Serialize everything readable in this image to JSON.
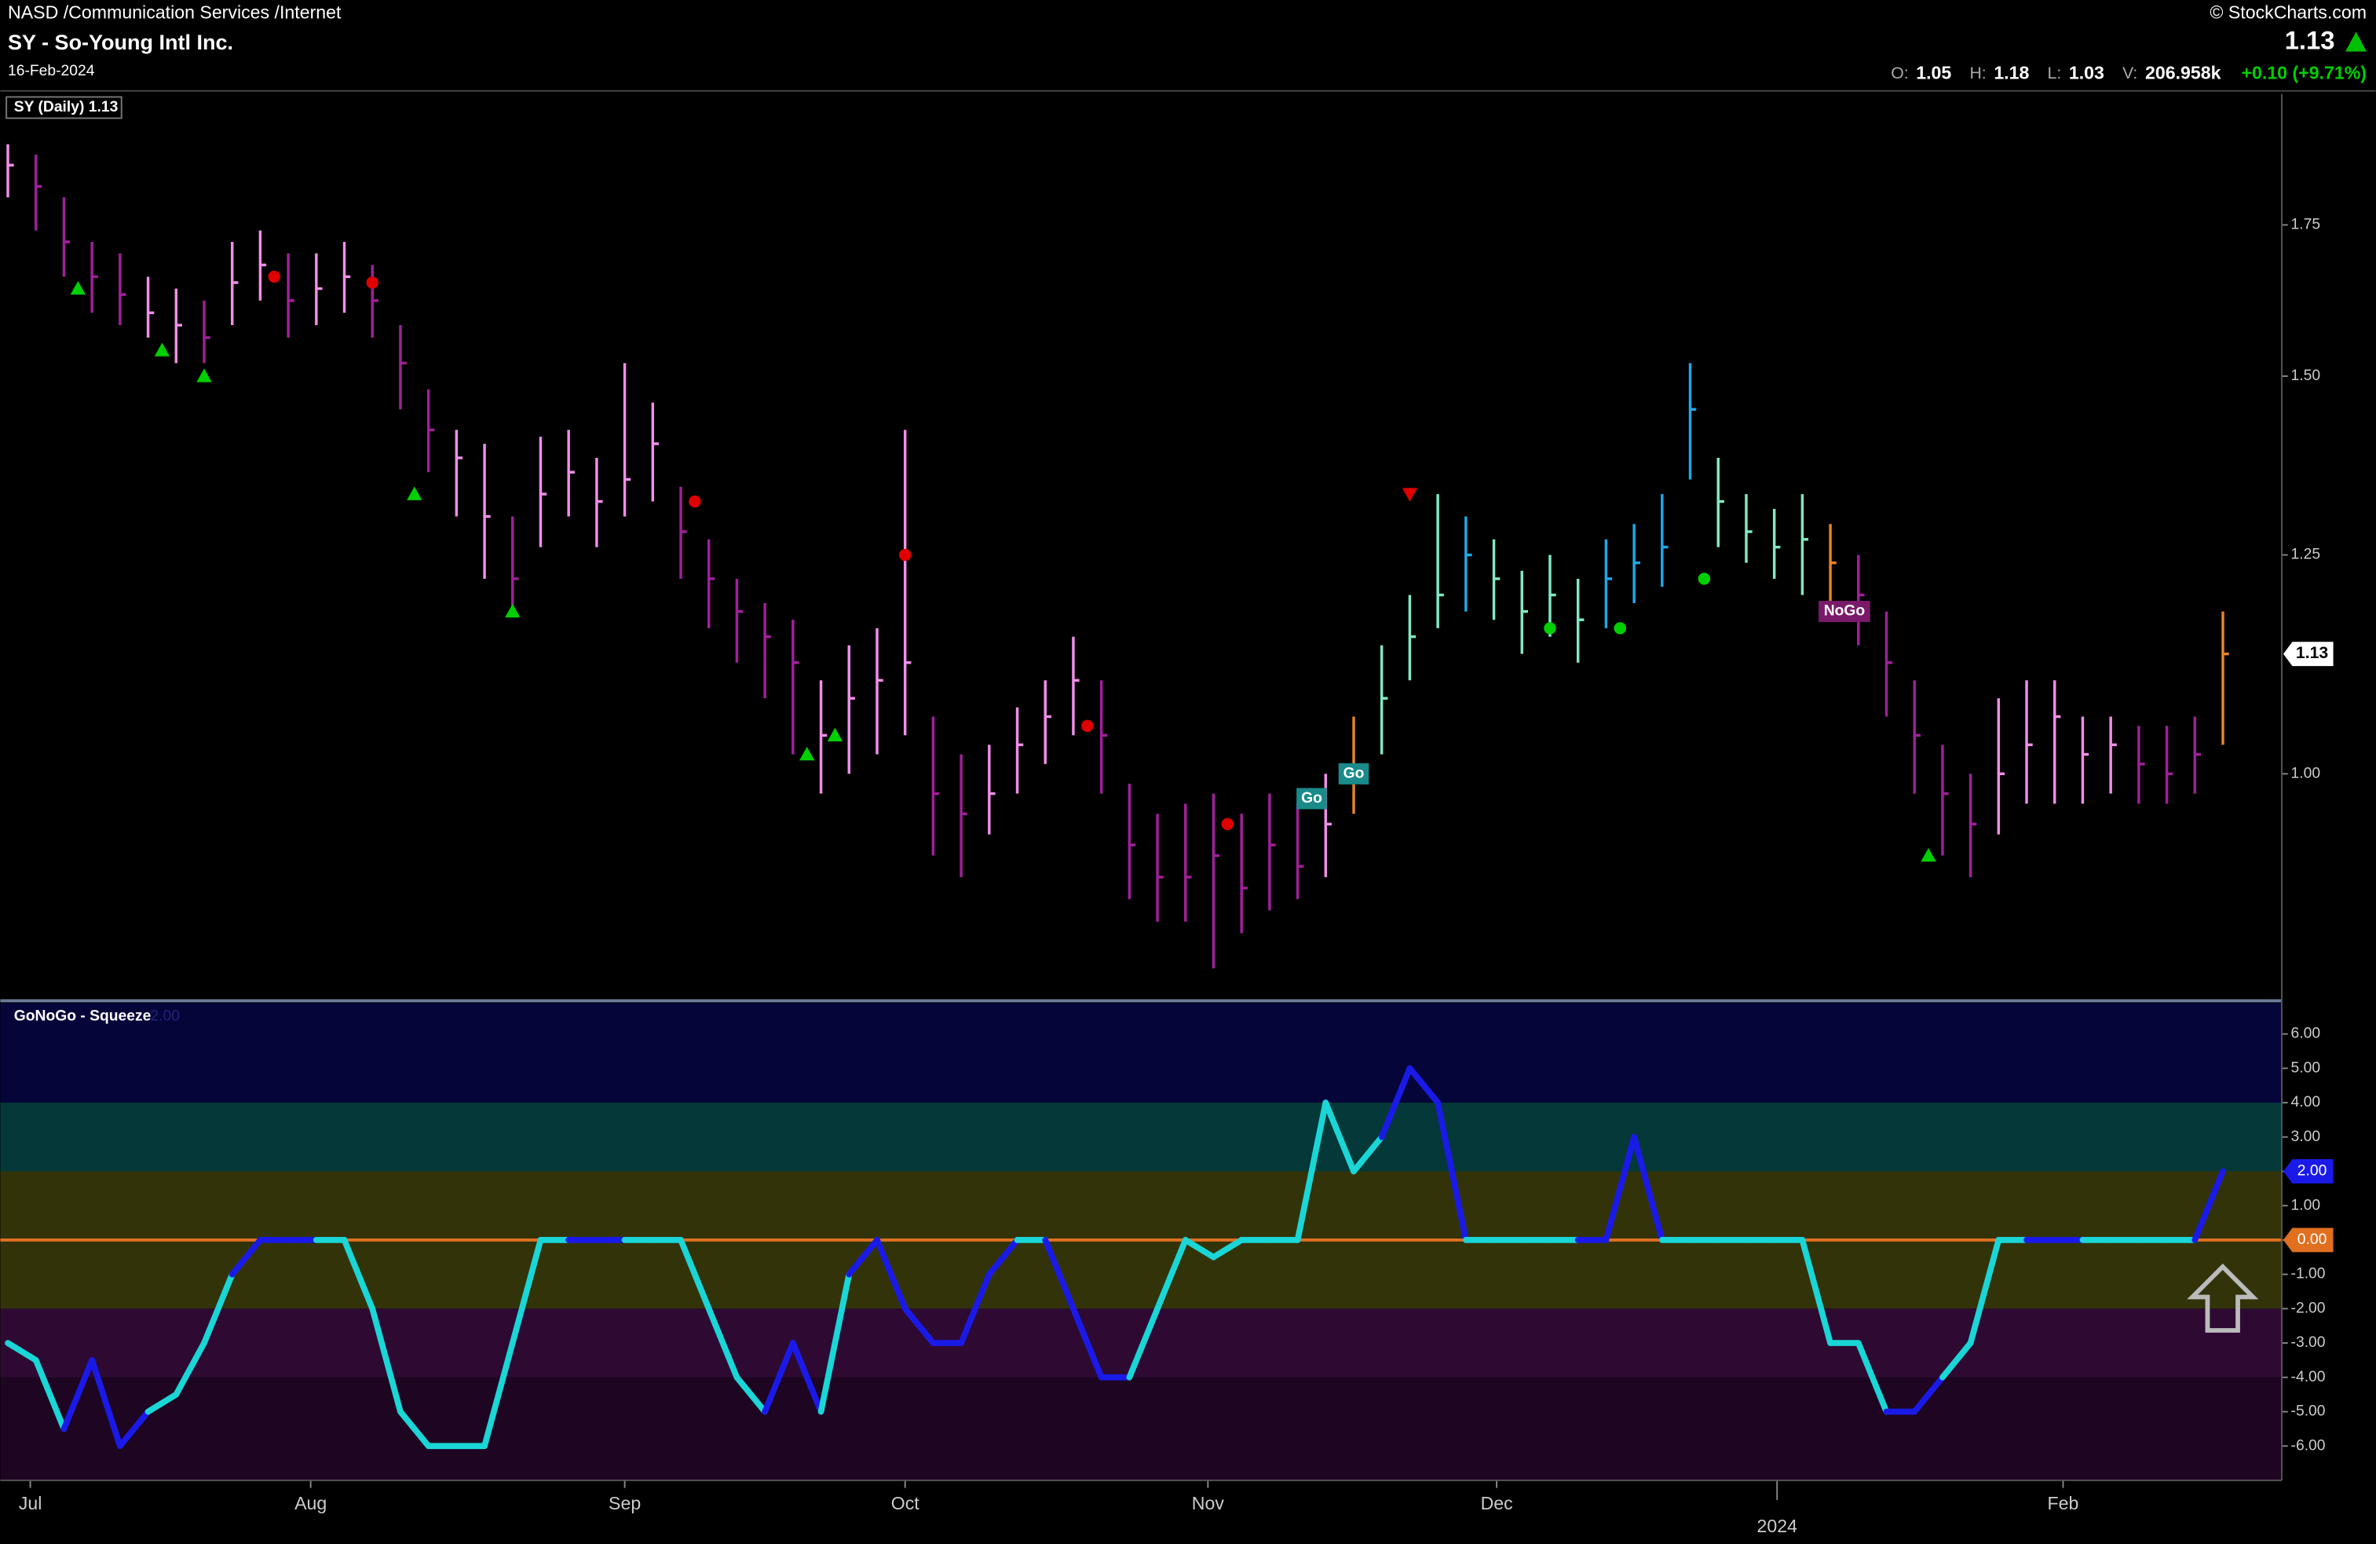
{
  "header": {
    "exchange": "NASD /Communication Services /Internet",
    "name": "SY - So-Young Intl Inc.",
    "date": "16-Feb-2024",
    "brand": "© StockCharts.com",
    "last": "1.13",
    "ohlc": [
      {
        "label": "O:",
        "value": "1.05"
      },
      {
        "label": "H:",
        "value": "1.18"
      },
      {
        "label": "L:",
        "value": "1.03"
      },
      {
        "label": "V:",
        "value": "206.958k"
      }
    ],
    "change": "+0.10 (+9.71%)"
  },
  "chart_data": [
    {
      "type": "ohlc",
      "legend": "SY (Daily) 1.13",
      "log_scale": true,
      "ylim": [
        0.794,
        2.0
      ],
      "yticks": [
        1.75,
        {
          "value": 1.5,
          "label": "1.50"
        },
        1.25,
        {
          "value": 1.0,
          "label": "1.00"
        }
      ],
      "xlim": [
        -0.27,
        81.1
      ],
      "xticks": [
        {
          "value": 0.8,
          "label": "Jul"
        },
        {
          "value": 10.8,
          "label": "Aug"
        },
        {
          "value": 22,
          "label": "Sep"
        },
        {
          "value": 32,
          "label": "Oct"
        },
        {
          "value": 42.8,
          "label": "Nov"
        },
        {
          "value": 53.1,
          "label": "Dec"
        },
        {
          "value": 73.3,
          "label": "Feb"
        }
      ],
      "x_year_ticks": [
        {
          "value": 63.1,
          "label": "2024"
        }
      ],
      "palette": [
        "#f08ee8",
        "#a0209a",
        "#80e8c8",
        "#20a8e8",
        "#e8822a"
      ],
      "high": [
        1.9,
        1.88,
        1.8,
        1.72,
        1.7,
        1.66,
        1.64,
        1.62,
        1.72,
        1.74,
        1.7,
        1.7,
        1.72,
        1.68,
        1.58,
        1.48,
        1.42,
        1.4,
        1.3,
        1.41,
        1.42,
        1.38,
        1.52,
        1.46,
        1.34,
        1.27,
        1.22,
        1.19,
        1.17,
        1.1,
        1.14,
        1.16,
        1.42,
        1.06,
        1.02,
        1.03,
        1.07,
        1.1,
        1.15,
        1.1,
        0.99,
        0.96,
        0.97,
        0.98,
        0.96,
        0.98,
        0.97,
        1.0,
        1.06,
        1.14,
        1.2,
        1.33,
        1.3,
        1.27,
        1.23,
        1.25,
        1.22,
        1.27,
        1.29,
        1.33,
        1.52,
        1.38,
        1.33,
        1.31,
        1.33,
        1.29,
        1.25,
        1.18,
        1.1,
        1.03,
        1.0,
        1.08,
        1.1,
        1.1,
        1.06,
        1.06,
        1.05,
        1.05,
        1.06,
        1.18
      ],
      "low": [
        1.8,
        1.74,
        1.66,
        1.6,
        1.58,
        1.56,
        1.52,
        1.52,
        1.58,
        1.62,
        1.56,
        1.58,
        1.6,
        1.56,
        1.45,
        1.36,
        1.3,
        1.22,
        1.18,
        1.26,
        1.3,
        1.26,
        1.3,
        1.32,
        1.22,
        1.16,
        1.12,
        1.08,
        1.02,
        0.98,
        1.0,
        1.02,
        1.04,
        0.92,
        0.9,
        0.94,
        0.98,
        1.01,
        1.04,
        0.98,
        0.88,
        0.86,
        0.86,
        0.82,
        0.85,
        0.87,
        0.88,
        0.9,
        0.96,
        1.02,
        1.1,
        1.16,
        1.18,
        1.17,
        1.13,
        1.15,
        1.12,
        1.16,
        1.19,
        1.21,
        1.35,
        1.26,
        1.24,
        1.22,
        1.2,
        1.18,
        1.14,
        1.06,
        0.98,
        0.92,
        0.9,
        0.94,
        0.97,
        0.97,
        0.97,
        0.98,
        0.97,
        0.97,
        0.98,
        1.03
      ],
      "close": [
        1.86,
        1.82,
        1.72,
        1.66,
        1.63,
        1.6,
        1.58,
        1.56,
        1.65,
        1.68,
        1.62,
        1.64,
        1.66,
        1.62,
        1.52,
        1.42,
        1.38,
        1.3,
        1.22,
        1.33,
        1.36,
        1.32,
        1.35,
        1.4,
        1.28,
        1.22,
        1.18,
        1.15,
        1.12,
        1.04,
        1.08,
        1.1,
        1.12,
        0.98,
        0.96,
        0.98,
        1.03,
        1.06,
        1.1,
        1.04,
        0.93,
        0.9,
        0.9,
        0.92,
        0.89,
        0.93,
        0.91,
        0.95,
        1.0,
        1.08,
        1.15,
        1.2,
        1.25,
        1.22,
        1.18,
        1.2,
        1.17,
        1.22,
        1.24,
        1.26,
        1.45,
        1.32,
        1.28,
        1.26,
        1.27,
        1.24,
        1.2,
        1.12,
        1.04,
        0.98,
        0.95,
        1.0,
        1.03,
        1.06,
        1.02,
        1.03,
        1.01,
        1.0,
        1.02,
        1.13
      ],
      "bar_colors": [
        0,
        1,
        1,
        1,
        1,
        0,
        0,
        1,
        0,
        0,
        1,
        0,
        0,
        1,
        1,
        1,
        0,
        0,
        1,
        0,
        0,
        0,
        0,
        0,
        1,
        1,
        1,
        1,
        1,
        0,
        0,
        0,
        0,
        1,
        1,
        0,
        0,
        0,
        0,
        1,
        1,
        1,
        1,
        1,
        1,
        1,
        1,
        0,
        4,
        2,
        2,
        2,
        3,
        2,
        2,
        2,
        2,
        3,
        3,
        3,
        3,
        2,
        2,
        2,
        2,
        4,
        1,
        1,
        1,
        1,
        1,
        0,
        0,
        0,
        0,
        0,
        1,
        1,
        1,
        4
      ],
      "markers": [
        {
          "x": 2.5,
          "y": 1.64,
          "shape": "triangle-up",
          "color": "#00d000"
        },
        {
          "x": 5.5,
          "y": 1.54,
          "shape": "triangle-up",
          "color": "#00d000"
        },
        {
          "x": 7,
          "y": 1.5,
          "shape": "triangle-up",
          "color": "#00d000"
        },
        {
          "x": 14.5,
          "y": 1.33,
          "shape": "triangle-up",
          "color": "#00d000"
        },
        {
          "x": 18,
          "y": 1.18,
          "shape": "triangle-up",
          "color": "#00d000"
        },
        {
          "x": 28.5,
          "y": 1.02,
          "shape": "triangle-up",
          "color": "#00d000"
        },
        {
          "x": 29.5,
          "y": 1.04,
          "shape": "triangle-up",
          "color": "#00d000"
        },
        {
          "x": 68.5,
          "y": 0.92,
          "shape": "triangle-up",
          "color": "#00d000"
        },
        {
          "x": 9.5,
          "y": 1.66,
          "shape": "dot",
          "color": "#e00000"
        },
        {
          "x": 13,
          "y": 1.65,
          "shape": "dot",
          "color": "#e00000"
        },
        {
          "x": 24.5,
          "y": 1.32,
          "shape": "dot",
          "color": "#e00000"
        },
        {
          "x": 32,
          "y": 1.25,
          "shape": "dot",
          "color": "#e00000"
        },
        {
          "x": 38.5,
          "y": 1.05,
          "shape": "dot",
          "color": "#e00000"
        },
        {
          "x": 43.5,
          "y": 0.95,
          "shape": "dot",
          "color": "#e00000"
        },
        {
          "x": 50,
          "y": 1.33,
          "shape": "triangle-down",
          "color": "#e00000"
        },
        {
          "x": 55,
          "y": 1.16,
          "shape": "dot",
          "color": "#00d000"
        },
        {
          "x": 57.5,
          "y": 1.16,
          "shape": "dot",
          "color": "#00d000"
        },
        {
          "x": 60.5,
          "y": 1.22,
          "shape": "dot",
          "color": "#00d000"
        }
      ],
      "signals": [
        {
          "x": 46.5,
          "y": 0.975,
          "text": "Go",
          "color": "#1a8a8a"
        },
        {
          "x": 48,
          "y": 1.0,
          "text": "Go",
          "color": "#1a8a8a"
        },
        {
          "x": 65.5,
          "y": 1.18,
          "text": "NoGo",
          "color": "#7a1a6a"
        }
      ],
      "last_tag": {
        "value": 1.13,
        "label": "1.13"
      }
    },
    {
      "type": "oscillator",
      "title": "GoNoGo - Squeeze",
      "title_value": "2.00",
      "ylim": [
        -7.0,
        6.9
      ],
      "xlim": [
        -0.27,
        81.1
      ],
      "yticks": [
        {
          "value": 6,
          "label": "6.00"
        },
        {
          "value": 5,
          "label": "5.00"
        },
        {
          "value": 4,
          "label": "4.00"
        },
        {
          "value": 3,
          "label": "3.00"
        },
        {
          "value": 2,
          "label": "2.00"
        },
        {
          "value": 1,
          "label": "1.00"
        },
        {
          "value": 0,
          "label": "0.00"
        },
        {
          "value": -1,
          "label": "-1.00"
        },
        {
          "value": -2,
          "label": "-2.00"
        },
        {
          "value": -3,
          "label": "-3.00"
        },
        {
          "value": -4,
          "label": "-4.00"
        },
        {
          "value": -5,
          "label": "-5.00"
        },
        {
          "value": -6,
          "label": "-6.00"
        }
      ],
      "bands": [
        {
          "from": 4,
          "to": 6.9,
          "color": "#05053a"
        },
        {
          "from": 2,
          "to": 4,
          "color": "#053838"
        },
        {
          "from": -2,
          "to": 2,
          "color": "#33330a"
        },
        {
          "from": -4,
          "to": -2,
          "color": "#2e0a33"
        },
        {
          "from": -7,
          "to": -4,
          "color": "#1e0522"
        }
      ],
      "zero_color": "#e07020",
      "palette": [
        "#1ad6d6",
        "#1a1ae8"
      ],
      "values": [
        -3,
        -3.5,
        -5.5,
        -3.5,
        -6,
        -5,
        -4.5,
        -3,
        -1,
        0,
        0,
        0,
        0,
        -2,
        -5,
        -6,
        -6,
        -6,
        -3,
        0,
        0,
        0,
        0,
        0,
        0,
        -2,
        -4,
        -5,
        -3,
        -5,
        -1,
        0,
        -2,
        -3,
        -3,
        -1,
        0,
        0,
        -2,
        -4,
        -4,
        -2,
        0,
        -0.5,
        0,
        0,
        0,
        4,
        2,
        3,
        5,
        4,
        0,
        0,
        0,
        0,
        0,
        0,
        3,
        0,
        0,
        0,
        0,
        0,
        0,
        -3,
        -3,
        -5,
        -5,
        -4,
        -3,
        0,
        0,
        0,
        0,
        0,
        0,
        0,
        0,
        2
      ],
      "point_colors": [
        0,
        0,
        0,
        1,
        1,
        1,
        0,
        0,
        0,
        1,
        1,
        1,
        0,
        0,
        0,
        0,
        0,
        0,
        0,
        0,
        0,
        1,
        1,
        0,
        0,
        0,
        0,
        0,
        1,
        1,
        0,
        1,
        1,
        1,
        1,
        1,
        1,
        0,
        1,
        1,
        1,
        0,
        0,
        0,
        0,
        0,
        0,
        0,
        0,
        0,
        1,
        1,
        1,
        0,
        0,
        0,
        0,
        1,
        1,
        1,
        0,
        0,
        0,
        0,
        0,
        0,
        0,
        0,
        1,
        1,
        0,
        0,
        0,
        1,
        1,
        0,
        0,
        0,
        0,
        1
      ],
      "tags": [
        {
          "value": 2,
          "label": "2.00",
          "color": "#1a1ae8"
        },
        {
          "value": 0,
          "label": "0.00",
          "color": "#e07020"
        }
      ]
    }
  ]
}
